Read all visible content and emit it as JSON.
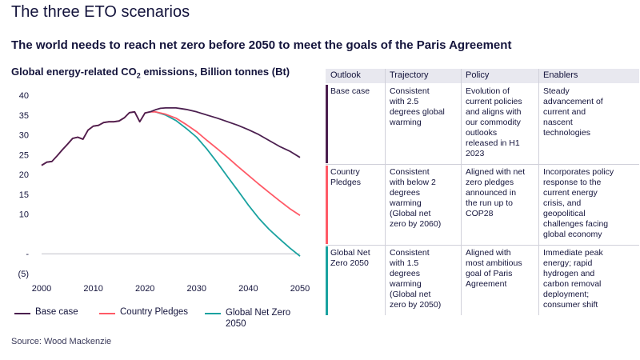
{
  "header": {
    "title": "The three ETO scenarios",
    "subtitle": "The world needs to reach net zero before 2050 to meet the goals of the Paris Agreement"
  },
  "chart_title": {
    "main": "Global energy-related CO",
    "sub": "2",
    "rest": " emissions, Billion tonnes (Bt)"
  },
  "source": "Source: Wood Mackenzie",
  "colors": {
    "base": "#4b1f4f",
    "pledges": "#ff5a67",
    "netzero": "#1aa2a0",
    "grid": "#bfbfc8"
  },
  "chart_data": {
    "type": "line",
    "title": "Global energy-related CO₂ emissions, Billion tonnes (Bt)",
    "xlabel": "",
    "ylabel": "",
    "xlim": [
      2000,
      2050
    ],
    "ylim": [
      -5,
      40
    ],
    "x_ticks": [
      "2000",
      "2010",
      "2020",
      "2030",
      "2040",
      "2050"
    ],
    "y_ticks": [
      "40",
      "35",
      "30",
      "25",
      "20",
      "15",
      "10",
      "-",
      "(5)"
    ],
    "y_tick_values": [
      40,
      35,
      30,
      25,
      20,
      15,
      10,
      0,
      -5
    ],
    "legend_position": "bottom",
    "series": [
      {
        "name": "Base case",
        "color": "#4b1f4f",
        "x": [
          2000,
          2001,
          2002,
          2003,
          2004,
          2005,
          2006,
          2007,
          2008,
          2009,
          2010,
          2011,
          2012,
          2013,
          2014,
          2015,
          2016,
          2017,
          2018,
          2019,
          2020,
          2021,
          2022,
          2023,
          2024,
          2025,
          2026,
          2027,
          2028,
          2030,
          2032,
          2034,
          2036,
          2038,
          2040,
          2042,
          2044,
          2046,
          2048,
          2050
        ],
        "y": [
          22.3,
          23.1,
          23.3,
          24.7,
          26.2,
          27.6,
          29.1,
          29.4,
          28.9,
          31.2,
          32.2,
          32.4,
          33.1,
          33.3,
          33.3,
          33.5,
          34.3,
          35.6,
          35.8,
          33.3,
          35.5,
          35.8,
          36.3,
          36.7,
          36.8,
          36.8,
          36.8,
          36.6,
          36.4,
          35.8,
          35.0,
          34.2,
          33.3,
          32.4,
          31.3,
          30.1,
          28.6,
          27.1,
          25.9,
          24.3
        ]
      },
      {
        "name": "Country Pledges",
        "color": "#ff5a67",
        "x": [
          2000,
          2001,
          2002,
          2003,
          2004,
          2005,
          2006,
          2007,
          2008,
          2009,
          2010,
          2011,
          2012,
          2013,
          2014,
          2015,
          2016,
          2017,
          2018,
          2019,
          2020,
          2021,
          2022,
          2024,
          2026,
          2028,
          2030,
          2032,
          2034,
          2036,
          2038,
          2040,
          2042,
          2044,
          2046,
          2048,
          2050
        ],
        "y": [
          22.3,
          23.1,
          23.3,
          24.7,
          26.2,
          27.6,
          29.1,
          29.4,
          28.9,
          31.2,
          32.2,
          32.4,
          33.1,
          33.3,
          33.3,
          33.5,
          34.3,
          35.6,
          35.8,
          33.3,
          35.5,
          35.8,
          35.8,
          35.2,
          34.2,
          32.6,
          30.8,
          28.6,
          26.5,
          24.3,
          22.0,
          19.8,
          17.6,
          15.5,
          13.4,
          11.4,
          9.7
        ]
      },
      {
        "name": "Global Net Zero 2050",
        "color": "#1aa2a0",
        "x": [
          2022,
          2024,
          2026,
          2028,
          2030,
          2032,
          2034,
          2036,
          2038,
          2040,
          2042,
          2044,
          2046,
          2048,
          2050
        ],
        "y": [
          35.8,
          35.0,
          33.6,
          31.6,
          29.4,
          26.4,
          23.0,
          19.4,
          15.9,
          12.3,
          9.0,
          6.2,
          3.8,
          1.5,
          -0.6
        ]
      }
    ]
  },
  "table": {
    "headers": [
      "Outlook",
      "Trajectory",
      "Policy",
      "Enablers"
    ],
    "rows": [
      {
        "outlook": "Base case",
        "trajectory": "Consistent\nwith 2.5\ndegrees global\nwarming",
        "policy": "Evolution of\ncurrent policies\nand aligns with\nour commodity\noutlooks\nreleased in H1\n2023",
        "enablers": "Steady\nadvancement of\ncurrent and\nnascent\ntechnologies",
        "color": "#4b1f4f"
      },
      {
        "outlook": "Country\nPledges",
        "trajectory": "Consistent\nwith below 2\ndegrees\nwarming\n(Global net\nzero by 2060)",
        "policy": "Aligned with net\nzero pledges\nannounced in\nthe run up to\nCOP28",
        "enablers": "Incorporates policy\nresponse to the\ncurrent energy\ncrisis, and\ngeopolitical\nchallenges facing\nglobal economy",
        "color": "#ff5a67"
      },
      {
        "outlook": "Global Net\nZero 2050",
        "trajectory": "Consistent\nwith 1.5\ndegrees\nwarming\n(Global net\nzero by 2050)",
        "policy": "Aligned with\nmost ambitious\ngoal of Paris\nAgreement",
        "enablers": "Immediate peak\nenergy; rapid\nhydrogen and\ncarbon removal\ndeployment;\nconsumer shift",
        "color": "#1aa2a0"
      }
    ]
  }
}
